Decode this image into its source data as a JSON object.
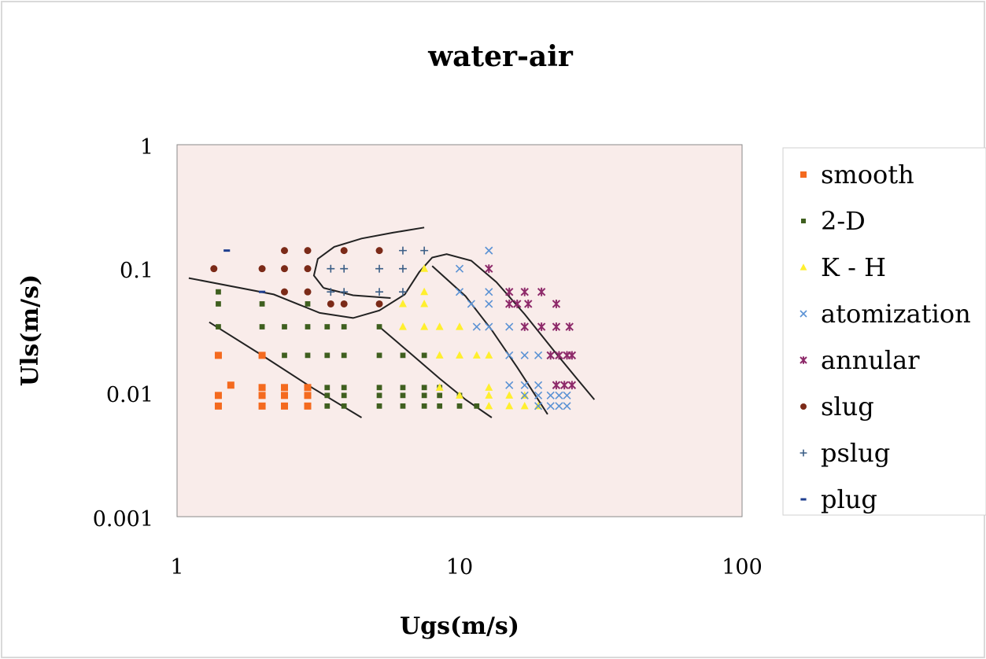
{
  "chart_data": {
    "type": "scatter",
    "title": "water-air",
    "xlabel": "Ugs(m/s)",
    "ylabel": "Uls(m/s)",
    "xscale": "log",
    "yscale": "log",
    "xlim": [
      1,
      100
    ],
    "ylim": [
      0.001,
      1
    ],
    "x_ticks": [
      "1",
      "10",
      "100"
    ],
    "y_ticks": [
      "1",
      "0.1",
      "0.01",
      "0.001"
    ],
    "legend_position": "right",
    "series": [
      {
        "name": "smooth",
        "marker": "square",
        "color": "#f46a1f",
        "points": [
          [
            1.4,
            0.02
          ],
          [
            1.4,
            0.0095
          ],
          [
            1.4,
            0.0078
          ],
          [
            1.55,
            0.0115
          ],
          [
            2.0,
            0.02
          ],
          [
            2.0,
            0.011
          ],
          [
            2.0,
            0.0095
          ],
          [
            2.0,
            0.0078
          ],
          [
            2.4,
            0.011
          ],
          [
            2.4,
            0.0095
          ],
          [
            2.4,
            0.0078
          ],
          [
            2.9,
            0.011
          ],
          [
            2.9,
            0.0095
          ],
          [
            2.9,
            0.0078
          ]
        ]
      },
      {
        "name": "2-D",
        "marker": "square-small",
        "color": "#3f5f1f",
        "points": [
          [
            1.4,
            0.065
          ],
          [
            1.4,
            0.052
          ],
          [
            1.4,
            0.034
          ],
          [
            2.0,
            0.052
          ],
          [
            2.0,
            0.034
          ],
          [
            2.4,
            0.034
          ],
          [
            2.9,
            0.052
          ],
          [
            2.9,
            0.034
          ],
          [
            2.4,
            0.02
          ],
          [
            2.9,
            0.02
          ],
          [
            3.4,
            0.034
          ],
          [
            3.4,
            0.02
          ],
          [
            3.4,
            0.011
          ],
          [
            3.4,
            0.0095
          ],
          [
            3.4,
            0.0078
          ],
          [
            3.9,
            0.034
          ],
          [
            3.9,
            0.02
          ],
          [
            3.9,
            0.011
          ],
          [
            3.9,
            0.0095
          ],
          [
            3.9,
            0.0078
          ],
          [
            5.2,
            0.034
          ],
          [
            5.2,
            0.02
          ],
          [
            5.2,
            0.011
          ],
          [
            5.2,
            0.0095
          ],
          [
            5.2,
            0.0078
          ],
          [
            6.3,
            0.02
          ],
          [
            6.3,
            0.011
          ],
          [
            6.3,
            0.0095
          ],
          [
            6.3,
            0.0078
          ],
          [
            7.5,
            0.02
          ],
          [
            7.5,
            0.011
          ],
          [
            7.5,
            0.0095
          ],
          [
            7.5,
            0.0078
          ],
          [
            8.5,
            0.011
          ],
          [
            8.5,
            0.0095
          ],
          [
            8.5,
            0.0078
          ],
          [
            10,
            0.0095
          ],
          [
            10,
            0.0078
          ],
          [
            11.5,
            0.0078
          ]
        ]
      },
      {
        "name": "K - H",
        "marker": "triangle",
        "color": "#ffef2e",
        "points": [
          [
            7.5,
            0.1
          ],
          [
            6.3,
            0.052
          ],
          [
            7.5,
            0.065
          ],
          [
            7.5,
            0.052
          ],
          [
            7.5,
            0.034
          ],
          [
            6.3,
            0.034
          ],
          [
            8.5,
            0.034
          ],
          [
            10,
            0.034
          ],
          [
            8.5,
            0.02
          ],
          [
            10,
            0.02
          ],
          [
            11.5,
            0.02
          ],
          [
            12.7,
            0.02
          ],
          [
            8.5,
            0.011
          ],
          [
            10,
            0.0095
          ],
          [
            12.7,
            0.011
          ],
          [
            12.7,
            0.0095
          ],
          [
            12.7,
            0.0078
          ],
          [
            15,
            0.0095
          ],
          [
            15,
            0.0078
          ],
          [
            17,
            0.0095
          ],
          [
            17,
            0.0078
          ],
          [
            19,
            0.0078
          ]
        ]
      },
      {
        "name": "atomization",
        "marker": "x",
        "color": "#5b92d4",
        "points": [
          [
            12.7,
            0.14
          ],
          [
            10,
            0.1
          ],
          [
            10,
            0.065
          ],
          [
            11,
            0.052
          ],
          [
            12.7,
            0.065
          ],
          [
            12.7,
            0.052
          ],
          [
            11.5,
            0.034
          ],
          [
            12.7,
            0.034
          ],
          [
            15,
            0.034
          ],
          [
            17,
            0.034
          ],
          [
            15,
            0.02
          ],
          [
            17,
            0.02
          ],
          [
            19,
            0.02
          ],
          [
            15,
            0.0115
          ],
          [
            17,
            0.0115
          ],
          [
            19,
            0.0115
          ],
          [
            17,
            0.0095
          ],
          [
            19,
            0.0095
          ],
          [
            21,
            0.0095
          ],
          [
            22.5,
            0.0095
          ],
          [
            24,
            0.0095
          ],
          [
            19,
            0.0078
          ],
          [
            21,
            0.0078
          ],
          [
            22.5,
            0.0078
          ],
          [
            24,
            0.0078
          ],
          [
            22,
            0.0115
          ]
        ]
      },
      {
        "name": "annular",
        "marker": "asterisk",
        "color": "#8e2a6a",
        "points": [
          [
            12.7,
            0.1
          ],
          [
            15,
            0.065
          ],
          [
            17,
            0.065
          ],
          [
            19.5,
            0.065
          ],
          [
            15,
            0.052
          ],
          [
            16,
            0.052
          ],
          [
            17.5,
            0.052
          ],
          [
            22,
            0.052
          ],
          [
            17,
            0.034
          ],
          [
            19.5,
            0.034
          ],
          [
            22,
            0.034
          ],
          [
            24.5,
            0.034
          ],
          [
            21,
            0.02
          ],
          [
            22.5,
            0.02
          ],
          [
            24,
            0.02
          ],
          [
            25,
            0.02
          ],
          [
            22,
            0.0115
          ],
          [
            23.5,
            0.0115
          ],
          [
            25,
            0.0115
          ]
        ]
      },
      {
        "name": "slug",
        "marker": "circle",
        "color": "#7b2a18",
        "points": [
          [
            1.35,
            0.1
          ],
          [
            2.0,
            0.1
          ],
          [
            2.4,
            0.1
          ],
          [
            2.9,
            0.1
          ],
          [
            2.4,
            0.14
          ],
          [
            2.9,
            0.14
          ],
          [
            3.9,
            0.14
          ],
          [
            5.2,
            0.14
          ],
          [
            2.4,
            0.065
          ],
          [
            2.9,
            0.065
          ],
          [
            3.5,
            0.052
          ],
          [
            3.9,
            0.052
          ],
          [
            5.2,
            0.052
          ]
        ]
      },
      {
        "name": "pslug",
        "marker": "plus",
        "color": "#3b5e86",
        "points": [
          [
            3.5,
            0.1
          ],
          [
            3.9,
            0.1
          ],
          [
            5.2,
            0.1
          ],
          [
            6.3,
            0.1
          ],
          [
            3.5,
            0.065
          ],
          [
            3.9,
            0.065
          ],
          [
            5.2,
            0.065
          ],
          [
            6.3,
            0.065
          ],
          [
            6.3,
            0.14
          ],
          [
            7.5,
            0.14
          ]
        ]
      },
      {
        "name": "plug",
        "marker": "dash",
        "color": "#1f3f8f",
        "points": [
          [
            1.5,
            0.14
          ],
          [
            2.0,
            0.065
          ]
        ]
      }
    ],
    "boundary_lines": [
      [
        [
          1.1,
          0.084
        ],
        [
          2.2,
          0.062
        ],
        [
          3.2,
          0.044
        ],
        [
          4.2,
          0.04
        ],
        [
          5.2,
          0.046
        ],
        [
          6.4,
          0.062
        ],
        [
          7.2,
          0.094
        ],
        [
          8.0,
          0.123
        ],
        [
          9.0,
          0.131
        ],
        [
          11.0,
          0.116
        ],
        [
          13.5,
          0.078
        ],
        [
          17.0,
          0.043
        ],
        [
          21.5,
          0.022
        ],
        [
          26.0,
          0.013
        ],
        [
          30.0,
          0.0088
        ]
      ],
      [
        [
          3.3,
          0.07
        ],
        [
          3.05,
          0.088
        ],
        [
          3.15,
          0.12
        ],
        [
          3.6,
          0.15
        ],
        [
          4.5,
          0.175
        ],
        [
          5.8,
          0.195
        ],
        [
          7.5,
          0.215
        ]
      ],
      [
        [
          3.3,
          0.07
        ],
        [
          4.2,
          0.061
        ],
        [
          5.7,
          0.058
        ]
      ],
      [
        [
          1.3,
          0.037
        ],
        [
          2.0,
          0.02
        ],
        [
          3.0,
          0.011
        ],
        [
          4.5,
          0.0063
        ]
      ],
      [
        [
          5.2,
          0.034
        ],
        [
          6.5,
          0.022
        ],
        [
          8.5,
          0.013
        ],
        [
          10.5,
          0.0088
        ],
        [
          13.0,
          0.0063
        ]
      ],
      [
        [
          8.0,
          0.105
        ],
        [
          10.5,
          0.06
        ],
        [
          13.0,
          0.032
        ],
        [
          16.0,
          0.016
        ],
        [
          20.5,
          0.0067
        ]
      ]
    ]
  }
}
